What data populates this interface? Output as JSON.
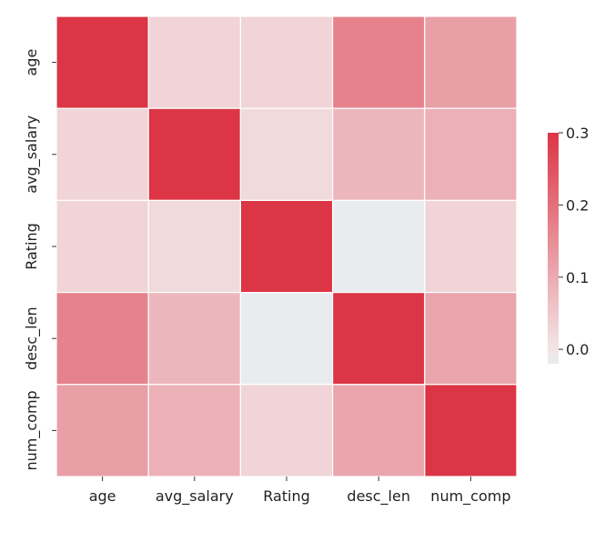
{
  "chart_data": {
    "type": "heatmap",
    "title": "",
    "xlabel": "",
    "ylabel": "",
    "rows": [
      "age",
      "avg_salary",
      "Rating",
      "desc_len",
      "num_comp"
    ],
    "cols": [
      "age",
      "avg_salary",
      "Rating",
      "desc_len",
      "num_comp"
    ],
    "values": [
      [
        0.3,
        0.03,
        0.03,
        0.17,
        0.12
      ],
      [
        0.03,
        0.3,
        0.02,
        0.08,
        0.09
      ],
      [
        0.03,
        0.02,
        0.3,
        -0.02,
        0.03
      ],
      [
        0.17,
        0.08,
        -0.02,
        0.3,
        0.11
      ],
      [
        0.12,
        0.09,
        0.03,
        0.11,
        0.3
      ]
    ],
    "colorbar": {
      "vmin": -0.02,
      "vmax": 0.3,
      "ticks": [
        0.0,
        0.1,
        0.2,
        0.3
      ],
      "tick_labels": [
        "0.0",
        "0.1",
        "0.2",
        "0.3"
      ],
      "color_low": "#e9ecef",
      "color_mid": "#f2e6e7",
      "color_high": "#dc3545"
    },
    "grid": false,
    "legend": "colorbar-right"
  }
}
